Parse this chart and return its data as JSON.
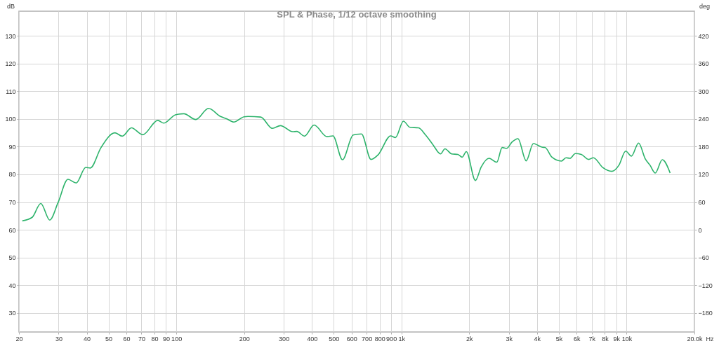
{
  "chart_data": {
    "type": "line",
    "title": "SPL & Phase, 1/12 octave smoothing",
    "xlabel": "Hz",
    "ylabel": "dB",
    "y2label": "deg",
    "log": "x",
    "grid": true,
    "line_style": "solid",
    "marker": "none",
    "xlim": [
      20,
      20000
    ],
    "ylim": [
      23.1,
      138.9
    ],
    "y2lim": [
      -221.4,
      473.4
    ],
    "xticks": [
      20,
      30,
      40,
      50,
      60,
      70,
      80,
      90,
      100,
      200,
      300,
      400,
      500,
      600,
      700,
      800,
      900,
      {
        "value": 1000,
        "label": "1k"
      },
      {
        "value": 2000,
        "label": "2k"
      },
      {
        "value": 3000,
        "label": "3k"
      },
      {
        "value": 4000,
        "label": "4k"
      },
      {
        "value": 5000,
        "label": "5k"
      },
      {
        "value": 6000,
        "label": "6k"
      },
      {
        "value": 7000,
        "label": "7k"
      },
      {
        "value": 8000,
        "label": "8k"
      },
      {
        "value": 9000,
        "label": "9k"
      },
      {
        "value": 10000,
        "label": "10k"
      },
      {
        "value": 20000,
        "label": "20.0k"
      }
    ],
    "yticks": [
      30,
      40,
      50,
      60,
      70,
      80,
      90,
      100,
      110,
      120,
      130
    ],
    "y2ticks": [
      -180,
      -120,
      -60,
      0,
      60,
      120,
      180,
      240,
      300,
      360,
      420
    ],
    "series": [
      {
        "color": "#2db36b",
        "x": [
          20.7,
          22.9,
          25.0,
          27.4,
          29.8,
          33.0,
          35.9,
          39.6,
          41.5,
          46.3,
          53.4,
          57.5,
          63.2,
          70.9,
          82.7,
          88.0,
          99.0,
          108,
          122,
          139,
          157,
          167,
          180,
          200,
          208,
          237,
          267,
          290,
          329,
          343,
          371,
          409,
          467,
          496,
          547,
          610,
          664,
          732,
          788,
          895,
          940,
          1020,
          1090,
          1190,
          1280,
          1380,
          1490,
          1560,
          1670,
          1780,
          1860,
          1940,
          2130,
          2260,
          2450,
          2650,
          2800,
          2930,
          3100,
          3290,
          3580,
          3850,
          4230,
          4340,
          4660,
          5130,
          5380,
          5600,
          5920,
          6290,
          6780,
          7120,
          7830,
          8600,
          9240,
          9900,
          10500,
          11300,
          12100,
          12700,
          13400,
          14400,
          15600
        ],
        "values": [
          63.2,
          64.5,
          69.5,
          63.5,
          69.7,
          78.2,
          76.9,
          82.5,
          82.3,
          89.7,
          95.0,
          93.8,
          96.8,
          94.3,
          99.5,
          98.5,
          101.5,
          101.9,
          99.8,
          103.8,
          100.9,
          100.1,
          98.9,
          100.8,
          100.9,
          100.7,
          96.6,
          97.6,
          95.4,
          95.5,
          93.8,
          97.8,
          93.6,
          93.9,
          85.3,
          94.2,
          94.6,
          85.4,
          87.1,
          93.9,
          93.3,
          99.2,
          97.0,
          96.8,
          94.2,
          90.7,
          87.4,
          89.2,
          87.4,
          87.2,
          86.2,
          88.2,
          77.8,
          82.7,
          85.8,
          84.4,
          89.7,
          89.4,
          91.7,
          92.9,
          84.9,
          91.1,
          89.8,
          89.7,
          86.2,
          84.8,
          86.0,
          85.8,
          87.5,
          87.2,
          85.4,
          86.0,
          82.5,
          81.1,
          83.3,
          88.4,
          86.6,
          91.3,
          85.6,
          83.3,
          80.5,
          85.3,
          80.5
        ]
      }
    ]
  }
}
